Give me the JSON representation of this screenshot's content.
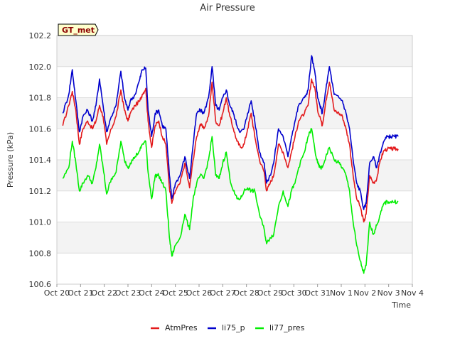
{
  "chart_data": {
    "type": "line",
    "title": "Air Pressure",
    "badge": "GT_met",
    "xlabel": "Time",
    "ylabel": "Pressure (kPa)",
    "ylim": [
      100.6,
      102.2
    ],
    "xlim": [
      0,
      15
    ],
    "yticks": [
      100.6,
      100.8,
      101.0,
      101.2,
      101.4,
      101.6,
      101.8,
      102.0,
      102.2
    ],
    "xticks": [
      {
        "pos": 0,
        "label": "Oct 20"
      },
      {
        "pos": 1,
        "label": "Oct 21"
      },
      {
        "pos": 2,
        "label": "Oct 22"
      },
      {
        "pos": 3,
        "label": "Oct 23"
      },
      {
        "pos": 4,
        "label": "Oct 24"
      },
      {
        "pos": 5,
        "label": "Oct 25"
      },
      {
        "pos": 6,
        "label": "Oct 26"
      },
      {
        "pos": 7,
        "label": "Oct 27"
      },
      {
        "pos": 8,
        "label": "Oct 28"
      },
      {
        "pos": 9,
        "label": "Oct 29"
      },
      {
        "pos": 10,
        "label": "Oct 30"
      },
      {
        "pos": 11,
        "label": "Oct 31"
      },
      {
        "pos": 12,
        "label": "Nov 1"
      },
      {
        "pos": 13,
        "label": "Nov 2"
      },
      {
        "pos": 14,
        "label": "Nov 3"
      },
      {
        "pos": 15,
        "label": "Nov 4"
      }
    ],
    "grid": true,
    "legend_position": "bottom",
    "series": [
      {
        "name": "AtmPres",
        "color": "#e31a1c",
        "x": [
          0.25,
          0.5,
          0.65,
          0.8,
          0.95,
          1.1,
          1.3,
          1.5,
          1.65,
          1.8,
          1.95,
          2.1,
          2.3,
          2.5,
          2.7,
          2.85,
          3.0,
          3.1,
          3.3,
          3.5,
          3.6,
          3.75,
          3.85,
          4.0,
          4.15,
          4.3,
          4.45,
          4.6,
          4.75,
          4.85,
          5.0,
          5.2,
          5.4,
          5.6,
          5.75,
          5.9,
          6.05,
          6.2,
          6.4,
          6.55,
          6.7,
          6.85,
          7.0,
          7.15,
          7.3,
          7.45,
          7.6,
          7.75,
          7.9,
          8.05,
          8.2,
          8.35,
          8.55,
          8.75,
          8.85,
          9.0,
          9.15,
          9.35,
          9.55,
          9.75,
          9.9,
          10.05,
          10.2,
          10.45,
          10.6,
          10.75,
          10.9,
          11.0,
          11.1,
          11.2,
          11.35,
          11.5,
          11.7,
          11.9,
          12.05,
          12.2,
          12.35,
          12.5,
          12.65,
          12.8,
          12.95,
          13.05,
          13.2,
          13.35,
          13.5,
          13.65,
          13.8,
          13.95,
          14.1,
          14.25,
          14.4
        ],
        "y": [
          101.62,
          101.75,
          101.84,
          101.72,
          101.5,
          101.6,
          101.65,
          101.6,
          101.65,
          101.75,
          101.68,
          101.5,
          101.6,
          101.68,
          101.85,
          101.72,
          101.65,
          101.7,
          101.75,
          101.78,
          101.82,
          101.86,
          101.65,
          101.48,
          101.62,
          101.65,
          101.55,
          101.5,
          101.22,
          101.12,
          101.2,
          101.25,
          101.38,
          101.22,
          101.4,
          101.55,
          101.63,
          101.6,
          101.68,
          101.9,
          101.65,
          101.62,
          101.7,
          101.8,
          101.68,
          101.6,
          101.52,
          101.48,
          101.5,
          101.6,
          101.7,
          101.55,
          101.4,
          101.32,
          101.2,
          101.25,
          101.3,
          101.5,
          101.45,
          101.35,
          101.45,
          101.55,
          101.65,
          101.7,
          101.75,
          101.92,
          101.85,
          101.72,
          101.68,
          101.62,
          101.78,
          101.9,
          101.72,
          101.7,
          101.68,
          101.6,
          101.5,
          101.3,
          101.15,
          101.1,
          101.0,
          101.05,
          101.3,
          101.25,
          101.28,
          101.4,
          101.46,
          101.47,
          101.47,
          101.47,
          101.47
        ]
      },
      {
        "name": "li75_p",
        "color": "#0000cc",
        "x": [
          0.25,
          0.5,
          0.65,
          0.8,
          0.95,
          1.1,
          1.3,
          1.5,
          1.65,
          1.8,
          1.95,
          2.1,
          2.3,
          2.5,
          2.7,
          2.85,
          3.0,
          3.1,
          3.3,
          3.5,
          3.6,
          3.75,
          3.85,
          4.0,
          4.15,
          4.3,
          4.45,
          4.6,
          4.75,
          4.85,
          5.0,
          5.2,
          5.4,
          5.6,
          5.75,
          5.9,
          6.05,
          6.2,
          6.4,
          6.55,
          6.7,
          6.85,
          7.0,
          7.15,
          7.3,
          7.45,
          7.6,
          7.75,
          7.9,
          8.05,
          8.2,
          8.35,
          8.55,
          8.75,
          8.85,
          9.0,
          9.15,
          9.35,
          9.55,
          9.75,
          9.9,
          10.05,
          10.2,
          10.45,
          10.6,
          10.75,
          10.9,
          11.0,
          11.1,
          11.2,
          11.35,
          11.5,
          11.7,
          11.9,
          12.05,
          12.2,
          12.35,
          12.5,
          12.65,
          12.8,
          12.95,
          13.05,
          13.2,
          13.35,
          13.5,
          13.65,
          13.8,
          13.95,
          14.1,
          14.25,
          14.4
        ],
        "y": [
          101.7,
          101.82,
          101.98,
          101.78,
          101.58,
          101.68,
          101.72,
          101.65,
          101.75,
          101.92,
          101.75,
          101.58,
          101.68,
          101.75,
          101.97,
          101.8,
          101.72,
          101.78,
          101.82,
          101.92,
          101.98,
          101.99,
          101.72,
          101.55,
          101.7,
          101.72,
          101.62,
          101.6,
          101.3,
          101.15,
          101.25,
          101.3,
          101.42,
          101.28,
          101.5,
          101.7,
          101.72,
          101.7,
          101.8,
          102.0,
          101.75,
          101.72,
          101.8,
          101.85,
          101.75,
          101.7,
          101.62,
          101.58,
          101.6,
          101.7,
          101.78,
          101.65,
          101.45,
          101.38,
          101.25,
          101.3,
          101.38,
          101.6,
          101.55,
          101.42,
          101.55,
          101.65,
          101.75,
          101.8,
          101.85,
          102.07,
          101.95,
          101.8,
          101.75,
          101.7,
          101.85,
          102.0,
          101.82,
          101.8,
          101.78,
          101.7,
          101.6,
          101.4,
          101.25,
          101.2,
          101.08,
          101.12,
          101.38,
          101.42,
          101.35,
          101.45,
          101.52,
          101.55,
          101.55,
          101.55,
          101.55
        ]
      },
      {
        "name": "li77_pres",
        "color": "#00ee00",
        "x": [
          0.25,
          0.5,
          0.65,
          0.8,
          0.95,
          1.1,
          1.3,
          1.5,
          1.65,
          1.8,
          1.95,
          2.1,
          2.3,
          2.5,
          2.7,
          2.85,
          3.0,
          3.1,
          3.3,
          3.5,
          3.6,
          3.75,
          3.85,
          4.0,
          4.15,
          4.3,
          4.45,
          4.6,
          4.75,
          4.85,
          5.0,
          5.2,
          5.4,
          5.6,
          5.75,
          5.9,
          6.05,
          6.2,
          6.4,
          6.55,
          6.7,
          6.85,
          7.0,
          7.15,
          7.3,
          7.45,
          7.6,
          7.75,
          7.9,
          8.05,
          8.2,
          8.35,
          8.55,
          8.75,
          8.85,
          9.0,
          9.15,
          9.35,
          9.55,
          9.75,
          9.9,
          10.05,
          10.2,
          10.45,
          10.6,
          10.75,
          10.9,
          11.0,
          11.1,
          11.2,
          11.35,
          11.5,
          11.7,
          11.9,
          12.05,
          12.2,
          12.35,
          12.5,
          12.65,
          12.8,
          12.95,
          13.05,
          13.2,
          13.35,
          13.5,
          13.65,
          13.8,
          13.95,
          14.1,
          14.25,
          14.4
        ],
        "y": [
          101.28,
          101.35,
          101.52,
          101.38,
          101.2,
          101.25,
          101.3,
          101.25,
          101.35,
          101.5,
          101.35,
          101.18,
          101.28,
          101.32,
          101.52,
          101.4,
          101.35,
          101.38,
          101.42,
          101.46,
          101.5,
          101.52,
          101.32,
          101.15,
          101.3,
          101.3,
          101.25,
          101.2,
          100.9,
          100.78,
          100.85,
          100.9,
          101.05,
          100.95,
          101.15,
          101.25,
          101.3,
          101.28,
          101.4,
          101.55,
          101.3,
          101.28,
          101.38,
          101.45,
          101.28,
          101.2,
          101.15,
          101.15,
          101.2,
          101.22,
          101.2,
          101.2,
          101.05,
          100.95,
          100.86,
          100.9,
          100.92,
          101.1,
          101.2,
          101.1,
          101.2,
          101.25,
          101.35,
          101.45,
          101.55,
          101.6,
          101.45,
          101.38,
          101.35,
          101.35,
          101.42,
          101.48,
          101.4,
          101.38,
          101.35,
          101.3,
          101.2,
          101.0,
          100.85,
          100.75,
          100.67,
          100.72,
          101.0,
          100.92,
          100.98,
          101.05,
          101.12,
          101.13,
          101.13,
          101.13,
          101.13
        ]
      }
    ]
  }
}
